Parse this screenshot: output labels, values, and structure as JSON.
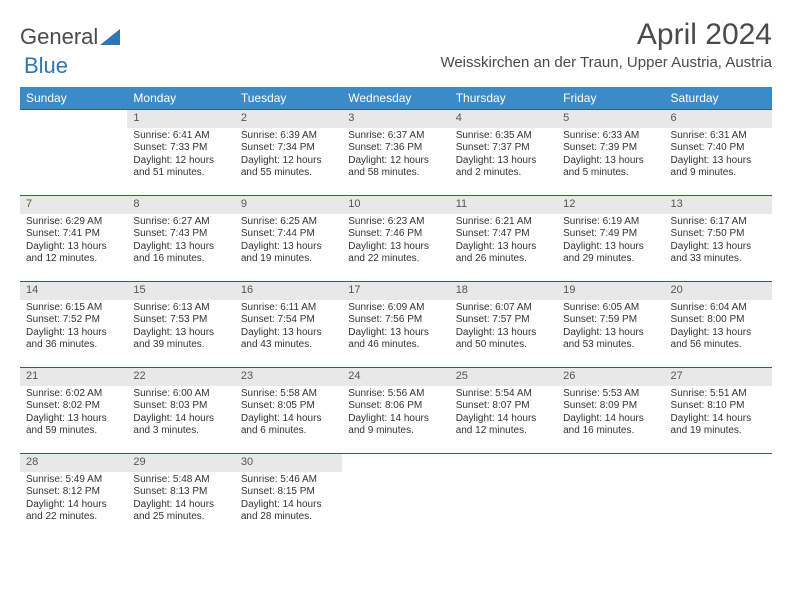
{
  "logo": {
    "text1": "General",
    "text2": "Blue"
  },
  "title": "April 2024",
  "location": "Weisskirchen an der Traun, Upper Austria, Austria",
  "colors": {
    "header_bg": "#3b8bc9",
    "header_text": "#ffffff",
    "day_num_bg": "#e8e8e8",
    "row_border": "#2e5b8a",
    "logo_blue": "#2e75b6",
    "text": "#333333",
    "background": "#ffffff"
  },
  "day_headers": [
    "Sunday",
    "Monday",
    "Tuesday",
    "Wednesday",
    "Thursday",
    "Friday",
    "Saturday"
  ],
  "weeks": [
    [
      {
        "n": "",
        "sr": "",
        "ss": "",
        "dl": ""
      },
      {
        "n": "1",
        "sr": "Sunrise: 6:41 AM",
        "ss": "Sunset: 7:33 PM",
        "dl": "Daylight: 12 hours and 51 minutes."
      },
      {
        "n": "2",
        "sr": "Sunrise: 6:39 AM",
        "ss": "Sunset: 7:34 PM",
        "dl": "Daylight: 12 hours and 55 minutes."
      },
      {
        "n": "3",
        "sr": "Sunrise: 6:37 AM",
        "ss": "Sunset: 7:36 PM",
        "dl": "Daylight: 12 hours and 58 minutes."
      },
      {
        "n": "4",
        "sr": "Sunrise: 6:35 AM",
        "ss": "Sunset: 7:37 PM",
        "dl": "Daylight: 13 hours and 2 minutes."
      },
      {
        "n": "5",
        "sr": "Sunrise: 6:33 AM",
        "ss": "Sunset: 7:39 PM",
        "dl": "Daylight: 13 hours and 5 minutes."
      },
      {
        "n": "6",
        "sr": "Sunrise: 6:31 AM",
        "ss": "Sunset: 7:40 PM",
        "dl": "Daylight: 13 hours and 9 minutes."
      }
    ],
    [
      {
        "n": "7",
        "sr": "Sunrise: 6:29 AM",
        "ss": "Sunset: 7:41 PM",
        "dl": "Daylight: 13 hours and 12 minutes."
      },
      {
        "n": "8",
        "sr": "Sunrise: 6:27 AM",
        "ss": "Sunset: 7:43 PM",
        "dl": "Daylight: 13 hours and 16 minutes."
      },
      {
        "n": "9",
        "sr": "Sunrise: 6:25 AM",
        "ss": "Sunset: 7:44 PM",
        "dl": "Daylight: 13 hours and 19 minutes."
      },
      {
        "n": "10",
        "sr": "Sunrise: 6:23 AM",
        "ss": "Sunset: 7:46 PM",
        "dl": "Daylight: 13 hours and 22 minutes."
      },
      {
        "n": "11",
        "sr": "Sunrise: 6:21 AM",
        "ss": "Sunset: 7:47 PM",
        "dl": "Daylight: 13 hours and 26 minutes."
      },
      {
        "n": "12",
        "sr": "Sunrise: 6:19 AM",
        "ss": "Sunset: 7:49 PM",
        "dl": "Daylight: 13 hours and 29 minutes."
      },
      {
        "n": "13",
        "sr": "Sunrise: 6:17 AM",
        "ss": "Sunset: 7:50 PM",
        "dl": "Daylight: 13 hours and 33 minutes."
      }
    ],
    [
      {
        "n": "14",
        "sr": "Sunrise: 6:15 AM",
        "ss": "Sunset: 7:52 PM",
        "dl": "Daylight: 13 hours and 36 minutes."
      },
      {
        "n": "15",
        "sr": "Sunrise: 6:13 AM",
        "ss": "Sunset: 7:53 PM",
        "dl": "Daylight: 13 hours and 39 minutes."
      },
      {
        "n": "16",
        "sr": "Sunrise: 6:11 AM",
        "ss": "Sunset: 7:54 PM",
        "dl": "Daylight: 13 hours and 43 minutes."
      },
      {
        "n": "17",
        "sr": "Sunrise: 6:09 AM",
        "ss": "Sunset: 7:56 PM",
        "dl": "Daylight: 13 hours and 46 minutes."
      },
      {
        "n": "18",
        "sr": "Sunrise: 6:07 AM",
        "ss": "Sunset: 7:57 PM",
        "dl": "Daylight: 13 hours and 50 minutes."
      },
      {
        "n": "19",
        "sr": "Sunrise: 6:05 AM",
        "ss": "Sunset: 7:59 PM",
        "dl": "Daylight: 13 hours and 53 minutes."
      },
      {
        "n": "20",
        "sr": "Sunrise: 6:04 AM",
        "ss": "Sunset: 8:00 PM",
        "dl": "Daylight: 13 hours and 56 minutes."
      }
    ],
    [
      {
        "n": "21",
        "sr": "Sunrise: 6:02 AM",
        "ss": "Sunset: 8:02 PM",
        "dl": "Daylight: 13 hours and 59 minutes."
      },
      {
        "n": "22",
        "sr": "Sunrise: 6:00 AM",
        "ss": "Sunset: 8:03 PM",
        "dl": "Daylight: 14 hours and 3 minutes."
      },
      {
        "n": "23",
        "sr": "Sunrise: 5:58 AM",
        "ss": "Sunset: 8:05 PM",
        "dl": "Daylight: 14 hours and 6 minutes."
      },
      {
        "n": "24",
        "sr": "Sunrise: 5:56 AM",
        "ss": "Sunset: 8:06 PM",
        "dl": "Daylight: 14 hours and 9 minutes."
      },
      {
        "n": "25",
        "sr": "Sunrise: 5:54 AM",
        "ss": "Sunset: 8:07 PM",
        "dl": "Daylight: 14 hours and 12 minutes."
      },
      {
        "n": "26",
        "sr": "Sunrise: 5:53 AM",
        "ss": "Sunset: 8:09 PM",
        "dl": "Daylight: 14 hours and 16 minutes."
      },
      {
        "n": "27",
        "sr": "Sunrise: 5:51 AM",
        "ss": "Sunset: 8:10 PM",
        "dl": "Daylight: 14 hours and 19 minutes."
      }
    ],
    [
      {
        "n": "28",
        "sr": "Sunrise: 5:49 AM",
        "ss": "Sunset: 8:12 PM",
        "dl": "Daylight: 14 hours and 22 minutes."
      },
      {
        "n": "29",
        "sr": "Sunrise: 5:48 AM",
        "ss": "Sunset: 8:13 PM",
        "dl": "Daylight: 14 hours and 25 minutes."
      },
      {
        "n": "30",
        "sr": "Sunrise: 5:46 AM",
        "ss": "Sunset: 8:15 PM",
        "dl": "Daylight: 14 hours and 28 minutes."
      },
      {
        "n": "",
        "sr": "",
        "ss": "",
        "dl": ""
      },
      {
        "n": "",
        "sr": "",
        "ss": "",
        "dl": ""
      },
      {
        "n": "",
        "sr": "",
        "ss": "",
        "dl": ""
      },
      {
        "n": "",
        "sr": "",
        "ss": "",
        "dl": ""
      }
    ]
  ]
}
